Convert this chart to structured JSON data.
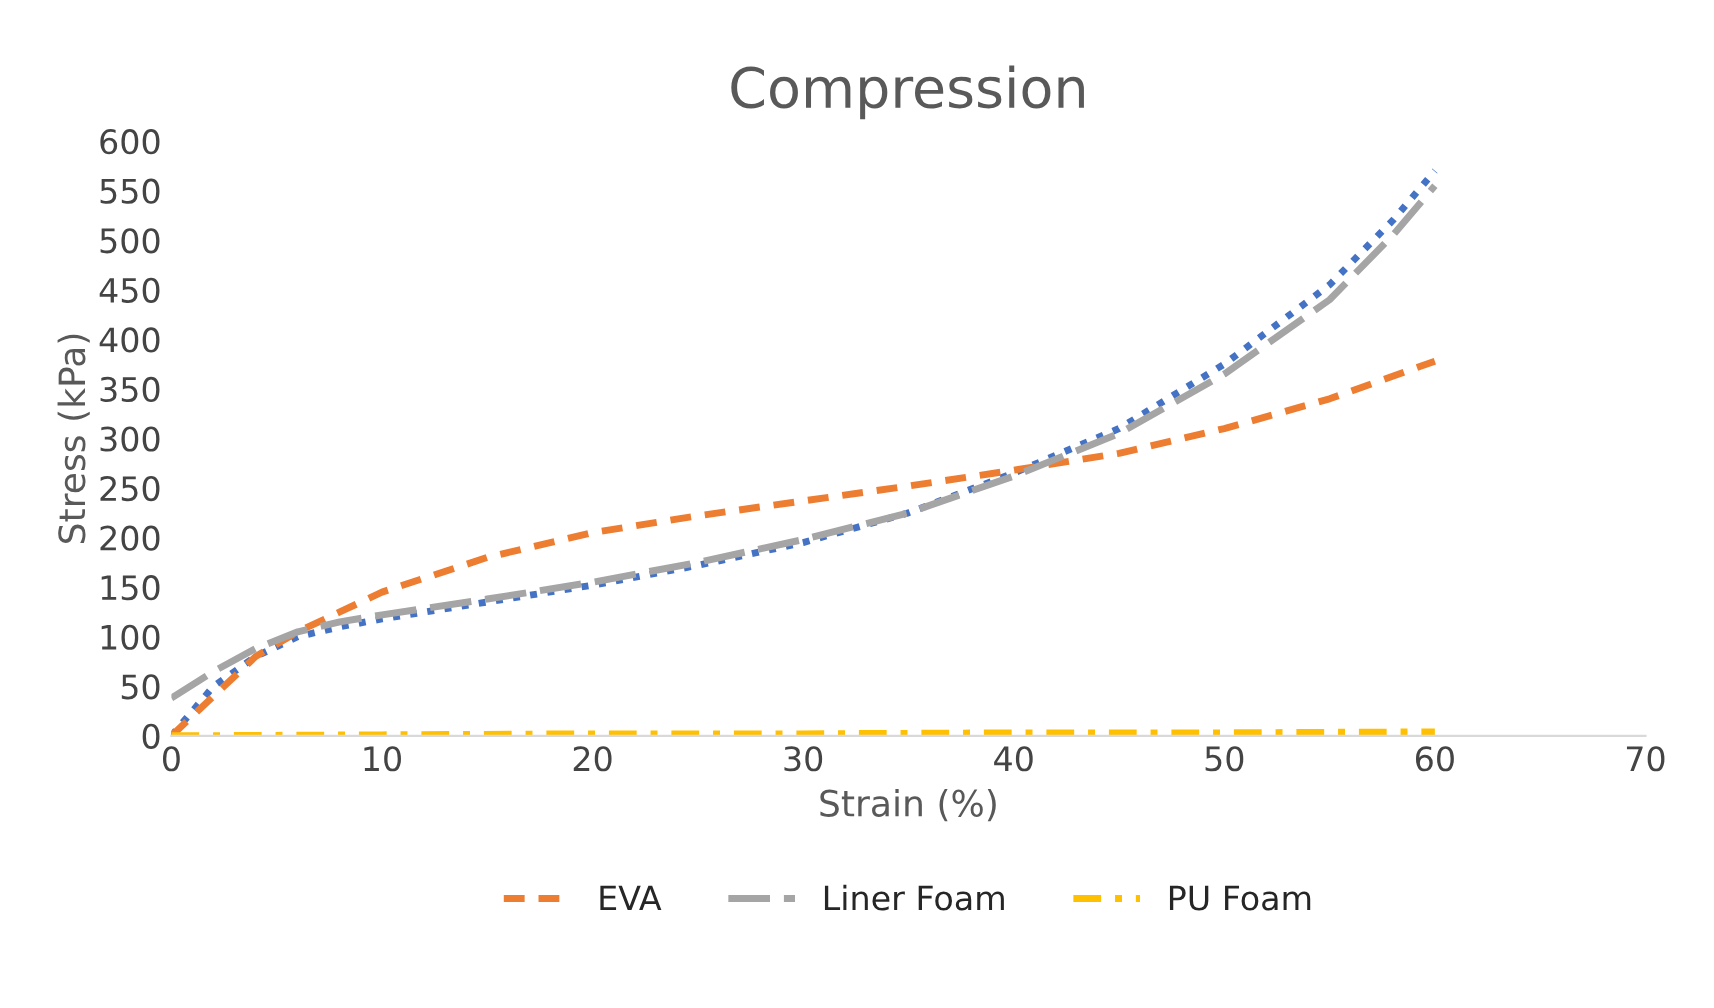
{
  "chart_data": {
    "type": "line",
    "title": "Compression",
    "xlabel": "Strain (%)",
    "ylabel": "Stress (kPa)",
    "xlim": [
      0,
      70
    ],
    "xticks": [
      0,
      10,
      20,
      30,
      40,
      50,
      60,
      70
    ],
    "ylim": [
      0,
      600
    ],
    "yticks": [
      0,
      50,
      100,
      150,
      200,
      250,
      300,
      350,
      400,
      450,
      500,
      550,
      600
    ],
    "grid": false,
    "legend": "bottom",
    "series": [
      {
        "color": "#4472c4",
        "line_style": "dotted",
        "x": [
          0,
          2,
          4,
          6,
          8,
          10,
          15,
          20,
          25,
          30,
          35,
          40,
          45,
          50,
          55,
          58,
          60
        ],
        "values": [
          0,
          50,
          80,
          100,
          110,
          118,
          135,
          152,
          172,
          195,
          225,
          265,
          310,
          375,
          455,
          520,
          570
        ]
      },
      {
        "name": "EVA",
        "color": "#ed7d31",
        "line_style": "dashed",
        "x": [
          0,
          2,
          4,
          6,
          8,
          10,
          15,
          20,
          25,
          30,
          35,
          40,
          45,
          50,
          55,
          60
        ],
        "values": [
          0,
          40,
          80,
          105,
          125,
          145,
          180,
          205,
          222,
          237,
          252,
          268,
          285,
          310,
          340,
          378
        ]
      },
      {
        "name": "Liner Foam",
        "color": "#a5a5a5",
        "line_style": "longdash",
        "x": [
          0,
          2,
          4,
          6,
          8,
          10,
          15,
          20,
          25,
          30,
          35,
          40,
          45,
          50,
          55,
          58,
          60
        ],
        "values": [
          38,
          65,
          88,
          105,
          115,
          122,
          138,
          155,
          175,
          198,
          225,
          262,
          305,
          365,
          440,
          505,
          555
        ]
      },
      {
        "name": "PU Foam",
        "color": "#ffc000",
        "line_style": "dashdot",
        "x": [
          0,
          10,
          20,
          30,
          40,
          50,
          60
        ],
        "values": [
          0,
          1,
          2,
          2,
          3,
          3,
          4
        ]
      }
    ]
  }
}
